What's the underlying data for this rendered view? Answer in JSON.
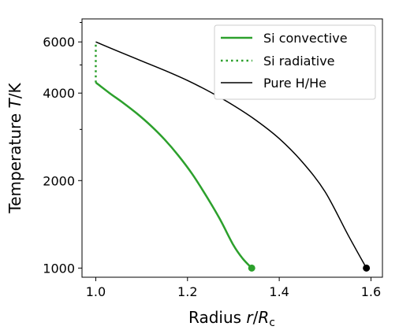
{
  "chart_data": {
    "type": "line",
    "xlabel": {
      "main": "Radius ",
      "var": "r",
      "slash": "/",
      "var2": "R",
      "sub": "c"
    },
    "ylabel": {
      "main": "Temperature ",
      "var": "T",
      "unit": "/K"
    },
    "xlim": [
      0.97,
      1.625
    ],
    "ylim": [
      930,
      7200
    ],
    "yscale": "log",
    "xticks": [
      1.0,
      1.2,
      1.4,
      1.6
    ],
    "xtick_labels": [
      "1.0",
      "1.2",
      "1.4",
      "1.6"
    ],
    "yticks": [
      1000,
      2000,
      4000,
      6000
    ],
    "ytick_labels": [
      "1000",
      "2000",
      "4000",
      "6000"
    ],
    "y_minor_ticks": [
      3000,
      5000,
      7000
    ],
    "legend_position": "top-right",
    "grid": false,
    "series": [
      {
        "name": "Si convective",
        "color": "#2ca02c",
        "style": "solid",
        "x": [
          1.0,
          1.03,
          1.06,
          1.09,
          1.12,
          1.15,
          1.18,
          1.21,
          1.24,
          1.27,
          1.3,
          1.32,
          1.34
        ],
        "y": [
          4350,
          4000,
          3700,
          3400,
          3090,
          2770,
          2440,
          2110,
          1780,
          1480,
          1200,
          1080,
          1000
        ],
        "end_marker": true
      },
      {
        "name": "Si radiative",
        "color": "#2ca02c",
        "style": "dotted",
        "x": [
          1.0,
          1.0
        ],
        "y": [
          4350,
          6000
        ],
        "end_marker": false
      },
      {
        "name": "Pure H/He",
        "color": "#000000",
        "style": "solid",
        "x": [
          1.0,
          1.05,
          1.1,
          1.15,
          1.2,
          1.25,
          1.3,
          1.35,
          1.4,
          1.45,
          1.5,
          1.55,
          1.59
        ],
        "y": [
          6000,
          5560,
          5160,
          4790,
          4420,
          4030,
          3630,
          3220,
          2790,
          2320,
          1830,
          1300,
          1000
        ],
        "end_marker": true
      }
    ]
  }
}
